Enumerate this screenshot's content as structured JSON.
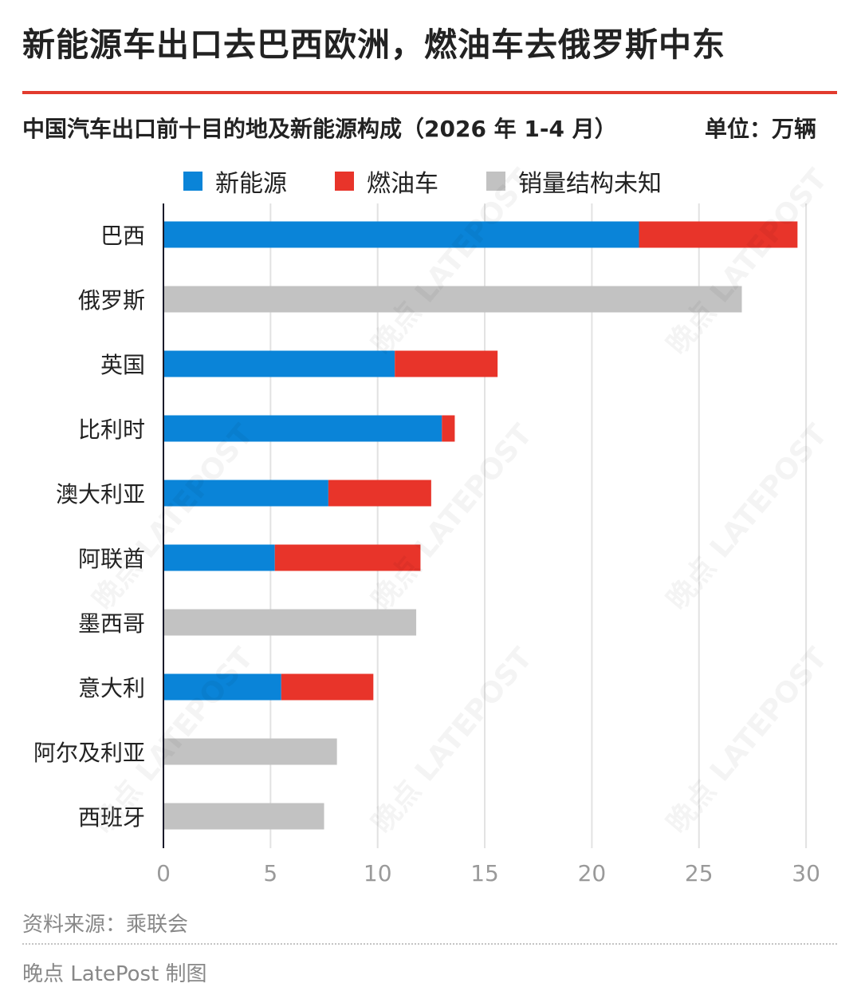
{
  "headline": "新能源车出口去巴西欧洲，燃油车去俄罗斯中东",
  "subtitle": "中国汽车出口前十目的地及新能源构成（2026 年 1-4 月）",
  "unit": "单位：万辆",
  "legend": [
    {
      "label": "新能源",
      "color": "#0a84d8"
    },
    {
      "label": "燃油车",
      "color": "#e8342a"
    },
    {
      "label": "销量结构未知",
      "color": "#c2c2c2"
    }
  ],
  "chart_data": {
    "type": "bar",
    "orientation": "horizontal",
    "stacked": true,
    "categories": [
      "巴西",
      "俄罗斯",
      "英国",
      "比利时",
      "澳大利亚",
      "阿联酋",
      "墨西哥",
      "意大利",
      "阿尔及利亚",
      "西班牙"
    ],
    "series": [
      {
        "name": "新能源",
        "color": "#0a84d8",
        "values": [
          22.2,
          0,
          10.8,
          13.0,
          7.7,
          5.2,
          0,
          5.5,
          0,
          0
        ]
      },
      {
        "name": "燃油车",
        "color": "#e8342a",
        "values": [
          7.4,
          0,
          4.8,
          0.6,
          4.8,
          6.8,
          0,
          4.3,
          0,
          0
        ]
      },
      {
        "name": "销量结构未知",
        "color": "#c2c2c2",
        "values": [
          0,
          27.0,
          0,
          0,
          0,
          0,
          11.8,
          0,
          8.1,
          7.5
        ]
      }
    ],
    "xticks": [
      0,
      5,
      10,
      15,
      20,
      25,
      30
    ],
    "xlim": [
      0,
      30
    ],
    "grid": true,
    "legend_position": "top"
  },
  "footer": {
    "source": "资料来源：乘联会",
    "credit": "晚点 LatePost 制图"
  },
  "watermark_text": "晚点 LATEPOST"
}
